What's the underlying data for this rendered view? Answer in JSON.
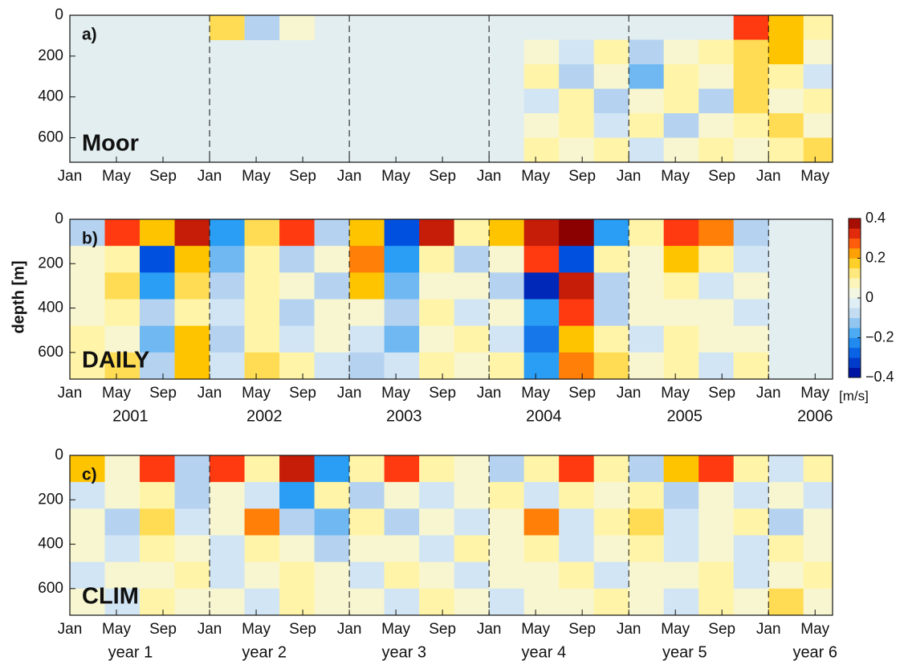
{
  "chart_data": [
    {
      "type": "heatmap",
      "panel_label": "a)",
      "name": "Moor",
      "ylabel": "depth [m]",
      "xlim": [
        0,
        65.5
      ],
      "ylim": [
        0,
        720
      ],
      "y_reversed": true,
      "yticks": [
        0,
        200,
        400,
        600
      ],
      "xticks": [
        {
          "value": 0,
          "label": "Jan"
        },
        {
          "value": 4,
          "label": "May"
        },
        {
          "value": 8,
          "label": "Sep"
        },
        {
          "value": 12,
          "label": "Jan"
        },
        {
          "value": 16,
          "label": "May"
        },
        {
          "value": 20,
          "label": "Sep"
        },
        {
          "value": 24,
          "label": "Jan"
        },
        {
          "value": 28,
          "label": "May"
        },
        {
          "value": 32,
          "label": "Sep"
        },
        {
          "value": 36,
          "label": "Jan"
        },
        {
          "value": 40,
          "label": "May"
        },
        {
          "value": 44,
          "label": "Sep"
        },
        {
          "value": 48,
          "label": "Jan"
        },
        {
          "value": 52,
          "label": "May"
        },
        {
          "value": 56,
          "label": "Sep"
        },
        {
          "value": 60,
          "label": "Jan"
        },
        {
          "value": 64,
          "label": "May"
        }
      ],
      "vlines": [
        12,
        24,
        36,
        48,
        60
      ],
      "nan_color": "#e3eef0",
      "x_edges": [
        0,
        3,
        6,
        9,
        12,
        15,
        18,
        21,
        24,
        27,
        30,
        33,
        36,
        39,
        42,
        45,
        48,
        51,
        54,
        57,
        60,
        63,
        66
      ],
      "y_edges": [
        0,
        120,
        240,
        360,
        480,
        600,
        720
      ],
      "z": [
        [
          null,
          null,
          null,
          null,
          0.15,
          -0.1,
          0.05,
          null,
          null,
          null,
          null,
          null,
          null,
          null,
          null,
          null,
          null,
          null,
          null,
          0.3,
          0.2,
          0.1
        ],
        [
          null,
          null,
          null,
          null,
          null,
          null,
          null,
          null,
          null,
          null,
          null,
          null,
          null,
          0.05,
          -0.05,
          0.1,
          -0.1,
          0.05,
          0.1,
          0.15,
          0.2,
          0.05
        ],
        [
          null,
          null,
          null,
          null,
          null,
          null,
          null,
          null,
          null,
          null,
          null,
          null,
          null,
          0.1,
          -0.1,
          0.05,
          -0.15,
          0.1,
          0.05,
          0.15,
          0.1,
          -0.05
        ],
        [
          null,
          null,
          null,
          null,
          null,
          null,
          null,
          null,
          null,
          null,
          null,
          null,
          null,
          -0.05,
          0.1,
          -0.1,
          0.05,
          0.1,
          -0.1,
          0.15,
          0.05,
          0.1
        ],
        [
          null,
          null,
          null,
          null,
          null,
          null,
          null,
          null,
          null,
          null,
          null,
          null,
          null,
          0.05,
          0.1,
          -0.05,
          0.1,
          -0.1,
          0.05,
          0.1,
          0.15,
          0.05
        ],
        [
          null,
          null,
          null,
          null,
          null,
          null,
          null,
          null,
          null,
          null,
          null,
          null,
          null,
          0.1,
          0.05,
          0.1,
          -0.05,
          0.05,
          0.1,
          0.05,
          0.1,
          0.15
        ]
      ]
    },
    {
      "type": "heatmap",
      "panel_label": "b)",
      "name": "DAILY",
      "xlim": [
        0,
        65.5
      ],
      "ylim": [
        0,
        720
      ],
      "y_reversed": true,
      "yticks": [
        0,
        200,
        400,
        600
      ],
      "xticks": [
        {
          "value": 0,
          "label": "Jan"
        },
        {
          "value": 4,
          "label": "May"
        },
        {
          "value": 8,
          "label": "Sep"
        },
        {
          "value": 12,
          "label": "Jan"
        },
        {
          "value": 16,
          "label": "May"
        },
        {
          "value": 20,
          "label": "Sep"
        },
        {
          "value": 24,
          "label": "Jan"
        },
        {
          "value": 28,
          "label": "May"
        },
        {
          "value": 32,
          "label": "Sep"
        },
        {
          "value": 36,
          "label": "Jan"
        },
        {
          "value": 40,
          "label": "May"
        },
        {
          "value": 44,
          "label": "Sep"
        },
        {
          "value": 48,
          "label": "Jan"
        },
        {
          "value": 52,
          "label": "May"
        },
        {
          "value": 56,
          "label": "Sep"
        },
        {
          "value": 60,
          "label": "Jan"
        },
        {
          "value": 64,
          "label": "May"
        }
      ],
      "year_labels": [
        {
          "value": 5.2,
          "label": "2001"
        },
        {
          "value": 16.7,
          "label": "2002"
        },
        {
          "value": 28.7,
          "label": "2003"
        },
        {
          "value": 40.7,
          "label": "2004"
        },
        {
          "value": 52.8,
          "label": "2005"
        },
        {
          "value": 64,
          "label": "2006"
        }
      ],
      "vlines": [
        12,
        24,
        36,
        48,
        60
      ],
      "nan_color": "#e3eef0",
      "colorbar": {
        "clim": [
          -0.4,
          0.4
        ],
        "unit": "[m/s]",
        "ticks": [
          0.4,
          0.2,
          0,
          {
            "value": -0.2,
            "label": "−0.2"
          },
          {
            "value": -0.4,
            "label": "−0.4"
          }
        ],
        "colormap": [
          {
            "value": -0.4,
            "color": "#00008f"
          },
          {
            "value": -0.3,
            "color": "#0050e0"
          },
          {
            "value": -0.2,
            "color": "#2a9df4"
          },
          {
            "value": -0.1,
            "color": "#b5d3f0"
          },
          {
            "value": 0,
            "color": "#eef7f7"
          },
          {
            "value": 0.1,
            "color": "#fff4a8"
          },
          {
            "value": 0.2,
            "color": "#ffc400"
          },
          {
            "value": 0.3,
            "color": "#ff3a10"
          },
          {
            "value": 0.4,
            "color": "#8b0000"
          }
        ]
      },
      "x_edges": [
        0,
        3,
        6,
        9,
        12,
        15,
        18,
        21,
        24,
        27,
        30,
        33,
        36,
        39,
        42,
        45,
        48,
        51,
        54,
        57,
        60,
        63,
        66
      ],
      "y_edges": [
        0,
        120,
        240,
        360,
        480,
        600,
        720
      ],
      "z": [
        [
          -0.1,
          0.3,
          0.2,
          0.35,
          -0.2,
          0.15,
          0.3,
          -0.1,
          0.2,
          -0.3,
          0.35,
          0.1,
          0.2,
          0.35,
          0.4,
          -0.2,
          0.1,
          0.3,
          0.25,
          -0.1,
          null,
          null
        ],
        [
          0.05,
          0.1,
          -0.3,
          0.2,
          -0.15,
          0.1,
          -0.1,
          0.05,
          0.25,
          -0.2,
          0.1,
          -0.1,
          0.05,
          0.3,
          -0.3,
          0.1,
          0.05,
          0.2,
          0.1,
          -0.05,
          null,
          null
        ],
        [
          0.05,
          0.15,
          -0.2,
          0.15,
          -0.1,
          0.1,
          0.05,
          -0.1,
          0.2,
          -0.15,
          0.05,
          0.05,
          -0.1,
          -0.35,
          0.35,
          -0.1,
          0.05,
          0.1,
          -0.05,
          0.05,
          null,
          null
        ],
        [
          0.05,
          0.1,
          -0.1,
          0.1,
          -0.05,
          0.1,
          -0.1,
          0.05,
          0.05,
          -0.1,
          0.1,
          -0.05,
          0.05,
          -0.2,
          0.3,
          -0.1,
          0.05,
          0.05,
          0.05,
          -0.05,
          null,
          null
        ],
        [
          0.1,
          0.05,
          -0.15,
          0.2,
          -0.1,
          0.1,
          -0.05,
          0.05,
          -0.05,
          -0.15,
          0.05,
          0.1,
          -0.05,
          -0.25,
          0.2,
          0.1,
          -0.05,
          0.1,
          0.05,
          0.05,
          null,
          null
        ],
        [
          0.1,
          0.15,
          -0.1,
          0.2,
          -0.05,
          0.15,
          0.1,
          -0.05,
          -0.1,
          -0.05,
          0.1,
          0.05,
          0.1,
          -0.2,
          0.25,
          0.15,
          0.05,
          0.1,
          -0.05,
          0.1,
          null,
          null
        ]
      ]
    },
    {
      "type": "heatmap",
      "panel_label": "c)",
      "name": "CLIM",
      "xlim": [
        0,
        65.5
      ],
      "ylim": [
        0,
        720
      ],
      "y_reversed": true,
      "yticks": [
        0,
        200,
        400,
        600
      ],
      "xticks": [
        {
          "value": 0,
          "label": "Jan"
        },
        {
          "value": 4,
          "label": "May"
        },
        {
          "value": 8,
          "label": "Sep"
        },
        {
          "value": 12,
          "label": "Jan"
        },
        {
          "value": 16,
          "label": "May"
        },
        {
          "value": 20,
          "label": "Sep"
        },
        {
          "value": 24,
          "label": "Jan"
        },
        {
          "value": 28,
          "label": "May"
        },
        {
          "value": 32,
          "label": "Sep"
        },
        {
          "value": 36,
          "label": "Jan"
        },
        {
          "value": 40,
          "label": "May"
        },
        {
          "value": 44,
          "label": "Sep"
        },
        {
          "value": 48,
          "label": "Jan"
        },
        {
          "value": 52,
          "label": "May"
        },
        {
          "value": 56,
          "label": "Sep"
        },
        {
          "value": 60,
          "label": "Jan"
        },
        {
          "value": 64,
          "label": "May"
        }
      ],
      "year_labels": [
        {
          "value": 5.2,
          "label": "year 1"
        },
        {
          "value": 16.7,
          "label": "year 2"
        },
        {
          "value": 28.7,
          "label": "year 3"
        },
        {
          "value": 40.7,
          "label": "year 4"
        },
        {
          "value": 52.8,
          "label": "year 5"
        },
        {
          "value": 64,
          "label": "year 6"
        }
      ],
      "vlines": [
        12,
        24,
        36,
        48,
        60
      ],
      "nan_color": "#e3eef0",
      "x_edges": [
        0,
        3,
        6,
        9,
        12,
        15,
        18,
        21,
        24,
        27,
        30,
        33,
        36,
        39,
        42,
        45,
        48,
        51,
        54,
        57,
        60,
        63,
        66
      ],
      "y_edges": [
        0,
        120,
        240,
        360,
        480,
        600,
        720
      ],
      "z": [
        [
          0.2,
          0.05,
          0.3,
          -0.1,
          0.3,
          0.1,
          0.35,
          -0.2,
          0.1,
          0.3,
          0.1,
          0.05,
          -0.1,
          0.1,
          0.3,
          0.1,
          -0.1,
          0.2,
          0.3,
          0.1,
          -0.05,
          0.1
        ],
        [
          -0.05,
          0.05,
          0.1,
          -0.1,
          0.05,
          -0.05,
          -0.2,
          0.1,
          -0.1,
          0.05,
          -0.05,
          0.05,
          0.1,
          -0.05,
          0.1,
          0.05,
          0.1,
          -0.1,
          0.05,
          -0.05,
          0.05,
          -0.05
        ],
        [
          0.05,
          -0.1,
          0.15,
          -0.05,
          0.05,
          0.25,
          -0.1,
          -0.15,
          0.1,
          -0.1,
          0.05,
          -0.05,
          0.05,
          0.25,
          -0.05,
          0.1,
          0.15,
          -0.05,
          0.05,
          0.1,
          -0.1,
          0.05
        ],
        [
          0.05,
          -0.05,
          0.1,
          0.05,
          -0.05,
          0.1,
          0.05,
          -0.1,
          0.05,
          0.05,
          -0.05,
          0.1,
          0.05,
          0.1,
          -0.05,
          0.05,
          0.1,
          -0.05,
          0.05,
          -0.05,
          0.1,
          0.05
        ],
        [
          -0.05,
          0.05,
          0.05,
          0.1,
          -0.05,
          0.05,
          0.1,
          0.05,
          -0.05,
          0.1,
          0.05,
          -0.05,
          0.05,
          0.05,
          0.1,
          -0.05,
          0.05,
          0.05,
          0.1,
          -0.05,
          0.05,
          0.1
        ],
        [
          0.05,
          -0.05,
          0.1,
          0.05,
          0.05,
          -0.05,
          0.1,
          0.05,
          0.05,
          -0.05,
          0.1,
          0.05,
          -0.05,
          0.05,
          0.05,
          0.1,
          0.05,
          -0.05,
          0.1,
          0.05,
          0.15,
          0.05
        ]
      ]
    }
  ]
}
